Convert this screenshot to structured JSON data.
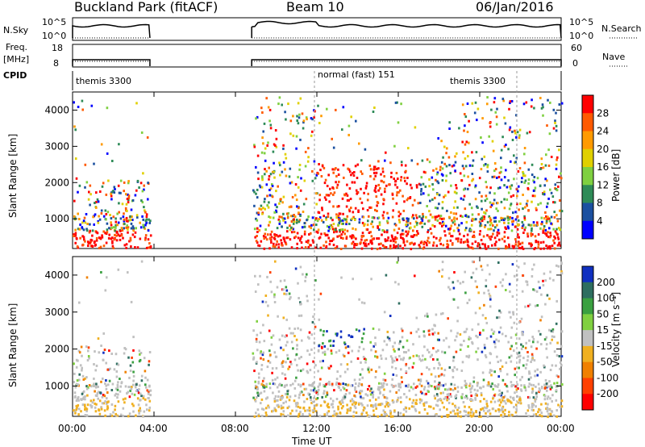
{
  "header": {
    "site": "Buckland Park (fitACF)",
    "beam": "Beam 10",
    "date": "06/Jan/2016"
  },
  "aux": {
    "nsky_label": "N.Sky",
    "nsky_ticks": [
      "10^5",
      "10^0"
    ],
    "nsearch_label": "N.Search",
    "nsearch_ticks": [
      "10^5",
      "10^0"
    ],
    "freq_label": "Freq.",
    "freq_unit": "[MHz]",
    "freq_ticks": [
      "18",
      "8"
    ],
    "nave_label": "Nave",
    "nave_ticks": [
      "60",
      "0"
    ],
    "cpid_label": "CPID",
    "cpid_segments": [
      {
        "name": "themis 3300",
        "start_hour": 0.0
      },
      {
        "name": "normal (fast) 151",
        "start_hour": 12.0
      },
      {
        "name": "themis 3300",
        "start_hour": 22.0
      }
    ]
  },
  "time_axis": {
    "label": "Time UT",
    "ticks": [
      "00:00",
      "04:00",
      "08:00",
      "12:00",
      "16:00",
      "20:00",
      "00:00"
    ],
    "range_hours": [
      0,
      24
    ]
  },
  "chart_data": [
    {
      "type": "heatmap",
      "ylabel": "Slant Range [km]",
      "yticks": [
        1000,
        2000,
        3000,
        4000
      ],
      "ylim": [
        180,
        4500
      ],
      "xlim_hours": [
        0,
        24
      ],
      "colorbar": {
        "label": "Power [dB]",
        "ticks": [
          "28",
          "24",
          "20",
          "16",
          "12",
          "8",
          "4"
        ],
        "colors": [
          "#ff0000",
          "#ff5a00",
          "#ff9a00",
          "#e0d000",
          "#7fd040",
          "#2e8b57",
          "#1b50a0",
          "#0000ff"
        ]
      },
      "data_gaps_hours": [
        [
          3.8,
          8.8
        ]
      ]
    },
    {
      "type": "heatmap",
      "ylabel": "Slant Range [km]",
      "yticks": [
        1000,
        2000,
        3000,
        4000
      ],
      "ylim": [
        180,
        4500
      ],
      "xlim_hours": [
        0,
        24
      ],
      "colorbar": {
        "label": "Velocity [m s⁻¹]",
        "ticks": [
          "200",
          "100",
          "50",
          "15",
          "-15",
          "-50",
          "-100",
          "-200"
        ],
        "colors": [
          "#1030c0",
          "#2e6e60",
          "#3aa040",
          "#80d040",
          "#c0c0c0",
          "#f0b020",
          "#f08000",
          "#ff4000",
          "#ff0000"
        ]
      },
      "data_gaps_hours": [
        [
          3.8,
          8.8
        ]
      ]
    }
  ]
}
